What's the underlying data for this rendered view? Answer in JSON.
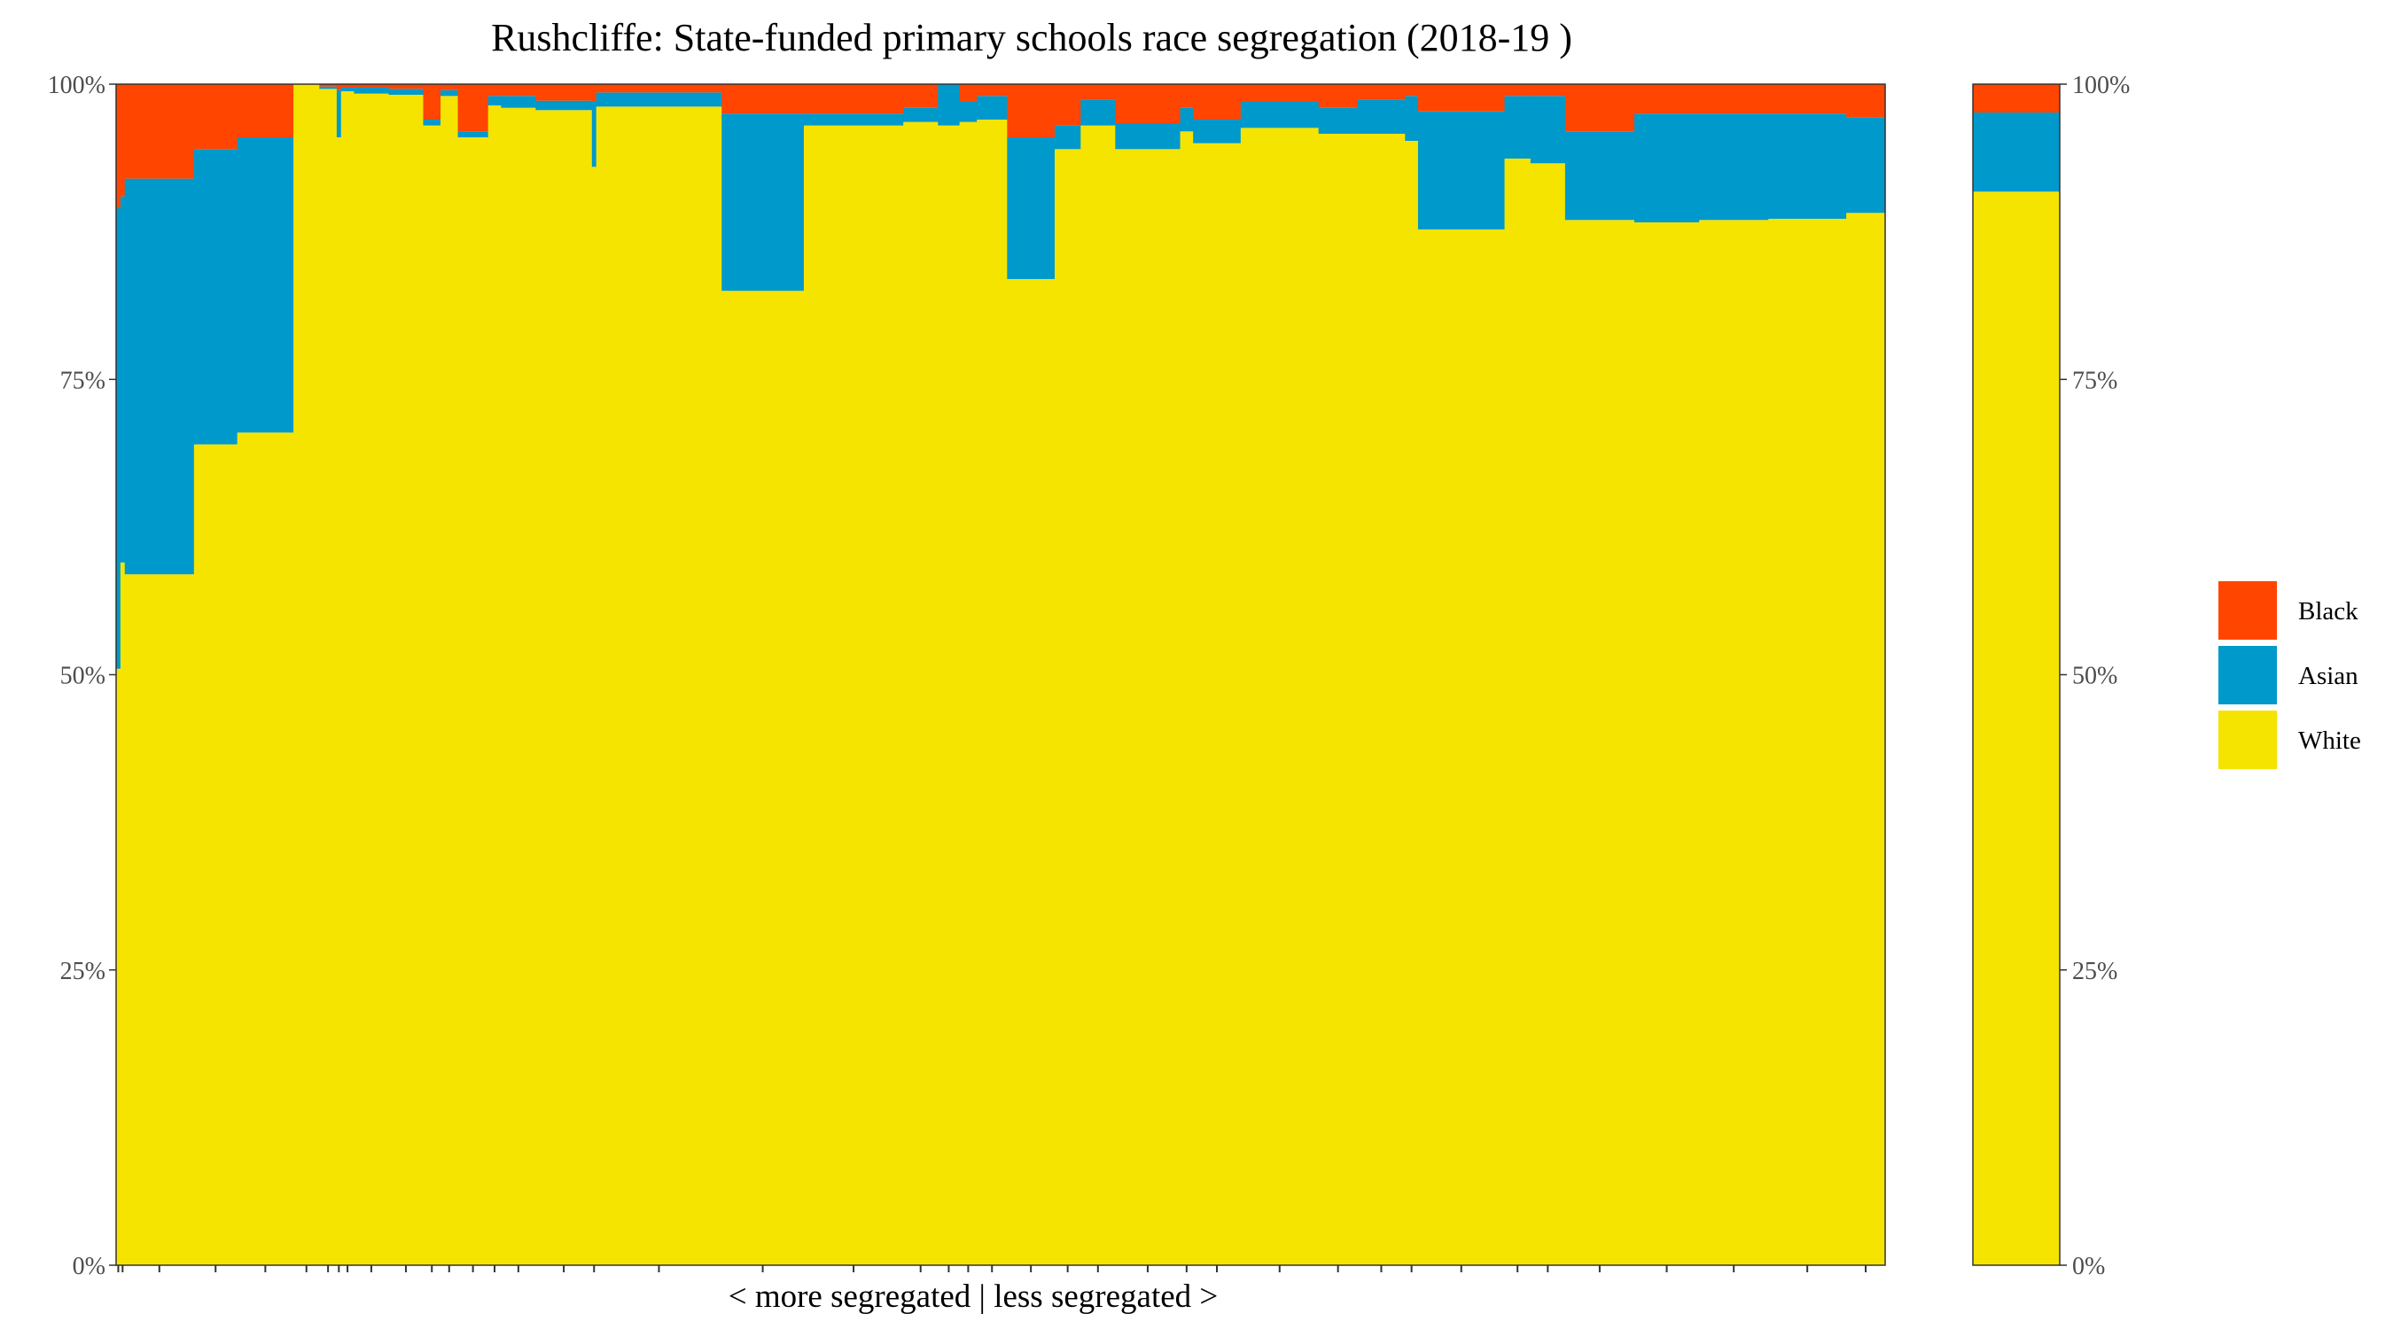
{
  "chart_data": {
    "type": "bar",
    "variant": "stacked-variable-width (marimekko)",
    "title": "Rushcliffe: State-funded primary schools race segregation (2018-19 )",
    "xlabel": "< more segregated | less segregated >",
    "ylabel": "",
    "ylim": [
      0,
      100
    ],
    "y_ticks": [
      "0%",
      "25%",
      "50%",
      "75%",
      "100%"
    ],
    "y_axis_sides": "left and right",
    "legend_position": "right",
    "series": [
      {
        "name": "Black",
        "color": "#FF4500"
      },
      {
        "name": "Asian",
        "color": "#0099CC"
      },
      {
        "name": "White",
        "color": "#F5E400"
      }
    ],
    "schools_panel": {
      "description": "Each column is one school; column width proportional to school size",
      "columns": [
        {
          "relative_width": 1,
          "white": 50.5,
          "asian": 39.0,
          "black": 10.5
        },
        {
          "relative_width": 1,
          "white": 59.5,
          "asian": 31.0,
          "black": 9.5
        },
        {
          "relative_width": 16,
          "white": 58.5,
          "asian": 33.5,
          "black": 8.0
        },
        {
          "relative_width": 10,
          "white": 69.5,
          "asian": 25.0,
          "black": 5.5
        },
        {
          "relative_width": 13,
          "white": 70.5,
          "asian": 25.0,
          "black": 4.5
        },
        {
          "relative_width": 6,
          "white": 100.0,
          "asian": 0.0,
          "black": 0.0
        },
        {
          "relative_width": 4,
          "white": 99.6,
          "asian": 0.2,
          "black": 0.2
        },
        {
          "relative_width": 1,
          "white": 95.5,
          "asian": 4.0,
          "black": 0.5
        },
        {
          "relative_width": 3,
          "white": 99.4,
          "asian": 0.3,
          "black": 0.3
        },
        {
          "relative_width": 8,
          "white": 99.2,
          "asian": 0.5,
          "black": 0.3
        },
        {
          "relative_width": 8,
          "white": 99.1,
          "asian": 0.5,
          "black": 0.4
        },
        {
          "relative_width": 4,
          "white": 96.5,
          "asian": 0.5,
          "black": 3.0
        },
        {
          "relative_width": 4,
          "white": 99.0,
          "asian": 0.5,
          "black": 0.5
        },
        {
          "relative_width": 7,
          "white": 95.5,
          "asian": 0.5,
          "black": 4.0
        },
        {
          "relative_width": 3,
          "white": 98.2,
          "asian": 0.8,
          "black": 1.0
        },
        {
          "relative_width": 8,
          "white": 98.0,
          "asian": 1.0,
          "black": 1.0
        },
        {
          "relative_width": 13,
          "white": 97.8,
          "asian": 0.8,
          "black": 1.4
        },
        {
          "relative_width": 1,
          "white": 93.0,
          "asian": 5.5,
          "black": 1.5
        },
        {
          "relative_width": 29,
          "white": 98.1,
          "asian": 1.2,
          "black": 0.7
        },
        {
          "relative_width": 19,
          "white": 82.5,
          "asian": 15.0,
          "black": 2.5
        },
        {
          "relative_width": 23,
          "white": 96.5,
          "asian": 1.0,
          "black": 2.5
        },
        {
          "relative_width": 8,
          "white": 96.8,
          "asian": 1.2,
          "black": 2.0
        },
        {
          "relative_width": 5,
          "white": 96.5,
          "asian": 3.5,
          "black": 0.0
        },
        {
          "relative_width": 4,
          "white": 96.8,
          "asian": 1.7,
          "black": 1.5
        },
        {
          "relative_width": 7,
          "white": 97.0,
          "asian": 2.0,
          "black": 1.0
        },
        {
          "relative_width": 11,
          "white": 83.5,
          "asian": 12.0,
          "black": 4.5
        },
        {
          "relative_width": 6,
          "white": 94.5,
          "asian": 2.0,
          "black": 3.5
        },
        {
          "relative_width": 8,
          "white": 96.5,
          "asian": 2.2,
          "black": 1.3
        },
        {
          "relative_width": 15,
          "white": 94.5,
          "asian": 2.2,
          "black": 3.3
        },
        {
          "relative_width": 3,
          "white": 96.0,
          "asian": 2.0,
          "black": 2.0
        },
        {
          "relative_width": 11,
          "white": 95.0,
          "asian": 2.0,
          "black": 3.0
        },
        {
          "relative_width": 18,
          "white": 96.3,
          "asian": 2.2,
          "black": 1.5
        },
        {
          "relative_width": 9,
          "white": 95.8,
          "asian": 2.2,
          "black": 2.0
        },
        {
          "relative_width": 11,
          "white": 95.8,
          "asian": 2.9,
          "black": 1.3
        },
        {
          "relative_width": 3,
          "white": 95.2,
          "asian": 3.8,
          "black": 1.0
        },
        {
          "relative_width": 20,
          "white": 87.7,
          "asian": 10.0,
          "black": 2.3
        },
        {
          "relative_width": 6,
          "white": 93.7,
          "asian": 5.3,
          "black": 1.0
        },
        {
          "relative_width": 8,
          "white": 93.3,
          "asian": 5.7,
          "black": 1.0
        },
        {
          "relative_width": 16,
          "white": 88.5,
          "asian": 7.5,
          "black": 4.0
        },
        {
          "relative_width": 15,
          "white": 88.3,
          "asian": 9.2,
          "black": 2.5
        },
        {
          "relative_width": 16,
          "white": 88.5,
          "asian": 9.0,
          "black": 2.5
        },
        {
          "relative_width": 18,
          "white": 88.6,
          "asian": 8.9,
          "black": 2.5
        },
        {
          "relative_width": 9,
          "white": 89.1,
          "asian": 8.1,
          "black": 2.8
        }
      ]
    },
    "overall_panel": {
      "description": "Local authority overall composition",
      "white": 90.9,
      "asian": 6.7,
      "black": 2.4
    }
  }
}
